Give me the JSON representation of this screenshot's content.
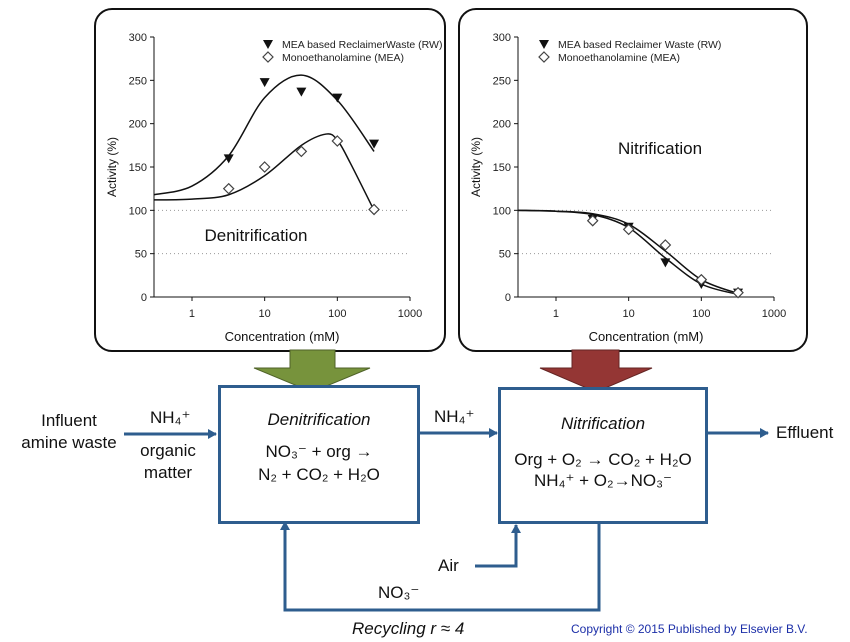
{
  "colors": {
    "flow_arrow": "#2e5d8e",
    "green_arrow": "#77933c",
    "red_arrow": "#943634",
    "copyright": "#1c2fa8"
  },
  "chart_data": [
    {
      "type": "scatter",
      "title": "Denitrification",
      "xlabel": "Concentration (mM)",
      "ylabel": "Activity (%)",
      "xscale": "log",
      "xlim": [
        0.3,
        1000
      ],
      "ylim": [
        0,
        300
      ],
      "xticks": [
        "1",
        "10",
        "100",
        "1000"
      ],
      "yticks": [
        "0",
        "50",
        "100",
        "150",
        "200",
        "250",
        "300"
      ],
      "grid": "dotted horizontal lines at 50 and 100",
      "legend_position": "top-right",
      "series": [
        {
          "name": "MEA based ReclaimerWaste (RW)",
          "marker": "filled-down-triangle",
          "x": [
            3.2,
            10,
            32,
            100,
            320
          ],
          "y": [
            160,
            248,
            237,
            230,
            177
          ],
          "fit_x": [
            0.3,
            1,
            3.2,
            10,
            32,
            100,
            320
          ],
          "fit_y": [
            118,
            128,
            163,
            230,
            256,
            227,
            168
          ]
        },
        {
          "name": "Monoethanolamine (MEA)",
          "marker": "open-diamond",
          "x": [
            3.2,
            10,
            32,
            100,
            320
          ],
          "y": [
            125,
            150,
            168,
            180,
            101
          ],
          "fit_x": [
            0.3,
            1,
            3.2,
            10,
            32,
            70,
            100,
            150,
            320
          ],
          "fit_y": [
            112,
            113,
            118,
            140,
            175,
            188,
            181,
            155,
            100
          ]
        }
      ]
    },
    {
      "type": "scatter",
      "title": "Nitrification",
      "xlabel": "Concentration (mM)",
      "ylabel": "Activity (%)",
      "xscale": "log",
      "xlim": [
        0.3,
        1000
      ],
      "ylim": [
        0,
        300
      ],
      "xticks": [
        "1",
        "10",
        "100",
        "1000"
      ],
      "yticks": [
        "0",
        "50",
        "100",
        "150",
        "200",
        "250",
        "300"
      ],
      "grid": "dotted horizontal lines at 50 and 100",
      "legend_position": "top-right",
      "series": [
        {
          "name": "MEA based Reclaimer Waste (RW)",
          "marker": "filled-down-triangle",
          "x": [
            3.2,
            10,
            32,
            100,
            320
          ],
          "y": [
            90,
            81,
            40,
            15,
            5
          ],
          "fit_x": [
            0.3,
            1,
            3.2,
            10,
            32,
            100,
            320
          ],
          "fit_y": [
            100,
            99,
            95,
            80,
            45,
            15,
            3
          ]
        },
        {
          "name": "Monoethanolamine (MEA)",
          "marker": "open-diamond",
          "x": [
            3.2,
            10,
            32,
            100,
            320
          ],
          "y": [
            88,
            78,
            60,
            20,
            5
          ],
          "fit_x": [
            0.3,
            1,
            3.2,
            10,
            32,
            100,
            320
          ],
          "fit_y": [
            100,
            99,
            96,
            84,
            53,
            20,
            4
          ]
        }
      ]
    }
  ],
  "diagram": {
    "influent": [
      "Influent",
      "amine waste"
    ],
    "nh4_in": "NH₄⁺",
    "organic": [
      "organic",
      "matter"
    ],
    "denit_title": "Denitrification",
    "denit_eq1": "NO₃⁻ + org →",
    "denit_eq2": "N₂ + CO₂ + H₂O",
    "nh4_mid": "NH₄⁺",
    "nit_title": "Nitrification",
    "nit_eq1": "Org + O₂ → CO₂ + H₂O",
    "nit_eq2": "NH₄⁺ + O₂→NO₃⁻",
    "effluent": "Effluent",
    "air": "Air",
    "no3": "NO₃⁻",
    "recycling": "Recycling r ≈ 4"
  },
  "copyright": "Copyright © 2015 Published by Elsevier B.V."
}
